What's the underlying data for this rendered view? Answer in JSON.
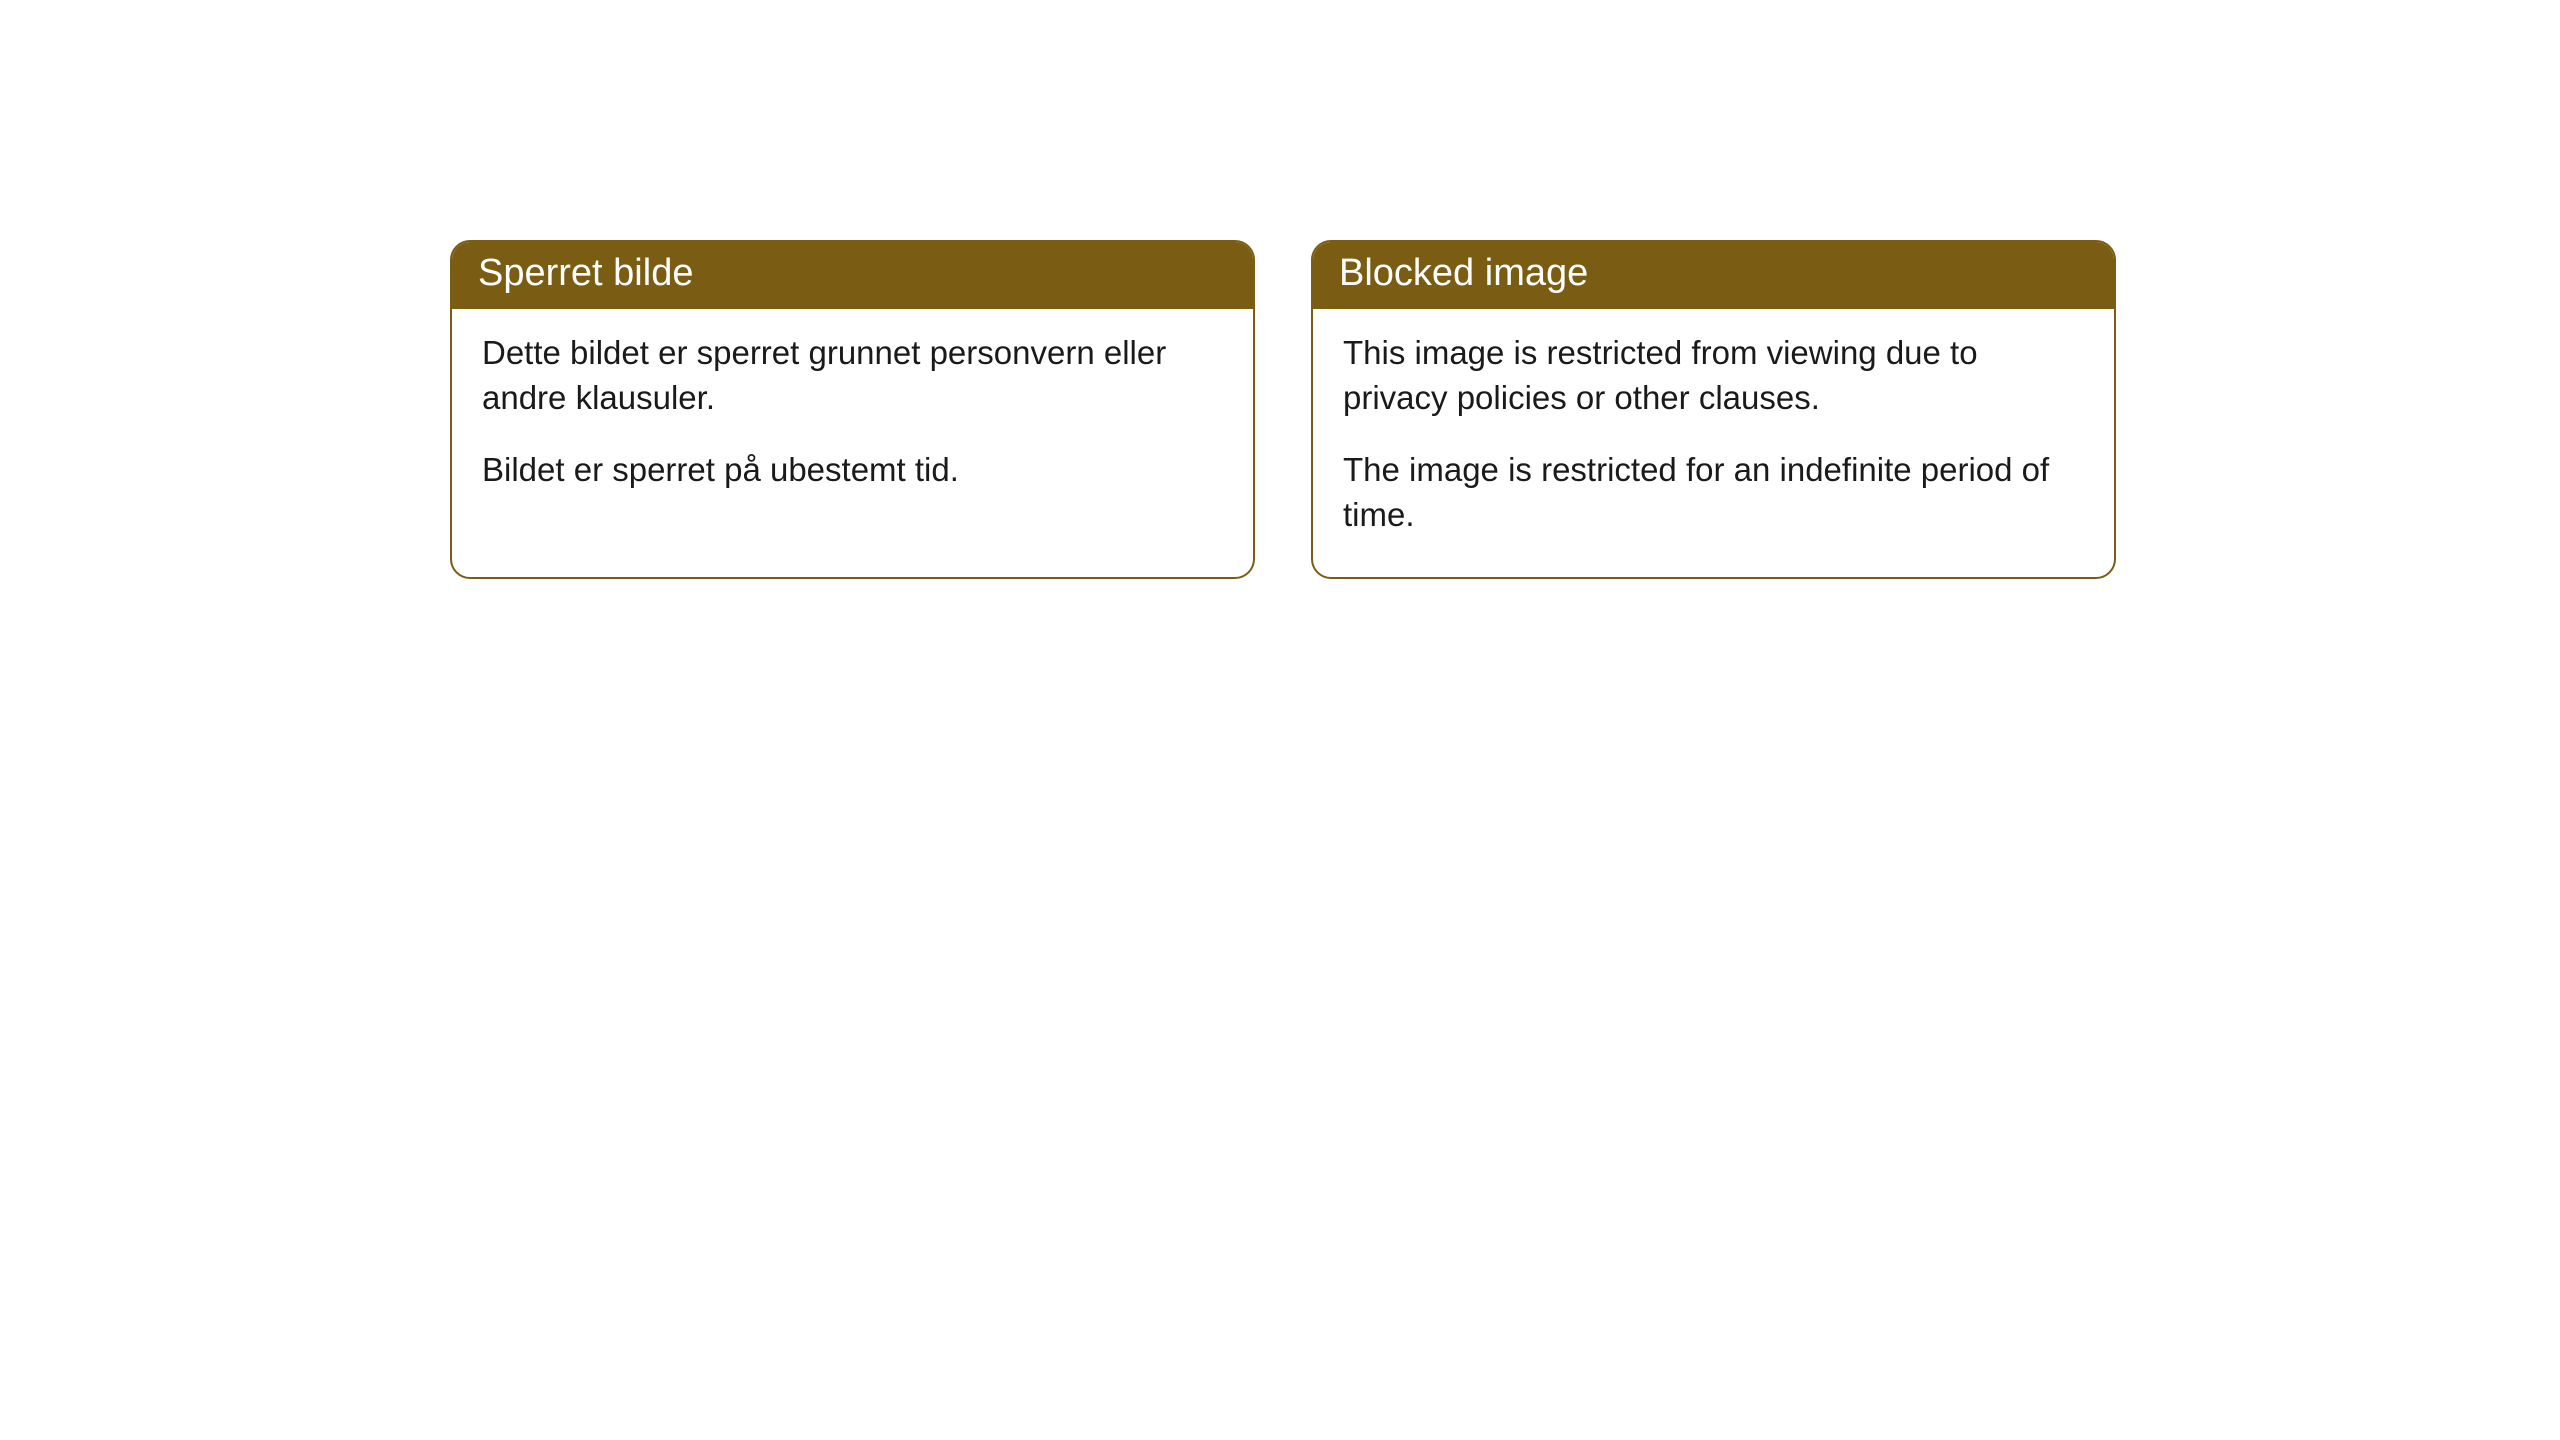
{
  "cards": [
    {
      "title": "Sperret bilde",
      "paragraph1": "Dette bildet er sperret grunnet personvern eller andre klausuler.",
      "paragraph2": "Bildet er sperret på ubestemt tid."
    },
    {
      "title": "Blocked image",
      "paragraph1": "This image is restricted from viewing due to privacy policies or other clauses.",
      "paragraph2": "The image is restricted for an indefinite period of time."
    }
  ],
  "styling": {
    "header_bg_color": "#7a5c13",
    "header_text_color": "#ffffff",
    "border_color": "#7a5c13",
    "body_text_color": "#1a1a1a",
    "background_color": "#ffffff",
    "border_radius": 20,
    "header_fontsize": 38,
    "body_fontsize": 33
  }
}
